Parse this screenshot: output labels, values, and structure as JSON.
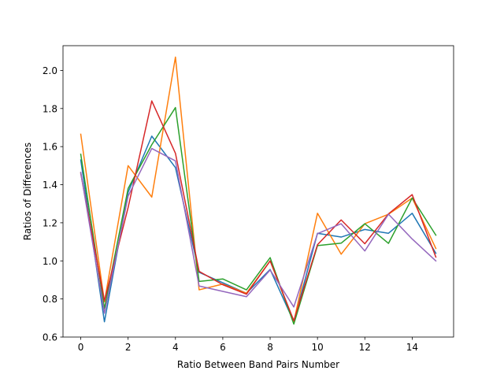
{
  "chart_data": {
    "type": "line",
    "title": "",
    "xlabel": "Ratio Between Band Pairs Number",
    "ylabel": "Ratios of Differences",
    "xlim": [
      -0.75,
      15.75
    ],
    "ylim": [
      0.6,
      2.13
    ],
    "xticks": [
      0,
      2,
      4,
      6,
      8,
      10,
      12,
      14
    ],
    "xtick_labels": [
      "0",
      "2",
      "4",
      "6",
      "8",
      "10",
      "12",
      "14"
    ],
    "yticks": [
      0.6,
      0.8,
      1.0,
      1.2,
      1.4,
      1.6,
      1.8,
      2.0
    ],
    "ytick_labels": [
      "0.6",
      "0.8",
      "1.0",
      "1.2",
      "1.4",
      "1.6",
      "1.8",
      "2.0"
    ],
    "grid": false,
    "legend": "none",
    "x": [
      0,
      1,
      2,
      3,
      4,
      5,
      6,
      7,
      8,
      9,
      10,
      11,
      12,
      13,
      14,
      15
    ],
    "series": [
      {
        "color": "#1f77b4",
        "values": [
          1.53,
          0.68,
          1.36,
          1.655,
          1.49,
          0.94,
          0.885,
          0.83,
          0.955,
          0.68,
          1.145,
          1.125,
          1.165,
          1.145,
          1.25,
          1.04
        ]
      },
      {
        "color": "#ff7f0e",
        "values": [
          1.665,
          0.785,
          1.5,
          1.335,
          2.07,
          0.848,
          0.878,
          0.83,
          1.0,
          0.68,
          1.25,
          1.035,
          1.195,
          1.245,
          1.33,
          1.065
        ]
      },
      {
        "color": "#2ca02c",
        "values": [
          1.56,
          0.75,
          1.38,
          1.61,
          1.805,
          0.892,
          0.905,
          0.848,
          1.017,
          0.668,
          1.08,
          1.093,
          1.195,
          1.092,
          1.33,
          1.135
        ]
      },
      {
        "color": "#d62728",
        "values": [
          1.46,
          0.79,
          1.28,
          1.84,
          1.565,
          0.945,
          0.875,
          0.825,
          1.0,
          0.686,
          1.085,
          1.215,
          1.09,
          1.247,
          1.348,
          1.02
        ]
      },
      {
        "color": "#9467bd",
        "values": [
          1.465,
          0.725,
          1.34,
          1.59,
          1.525,
          0.868,
          0.84,
          0.812,
          0.952,
          0.758,
          1.143,
          1.195,
          1.052,
          1.245,
          1.115,
          1.0
        ]
      }
    ]
  }
}
